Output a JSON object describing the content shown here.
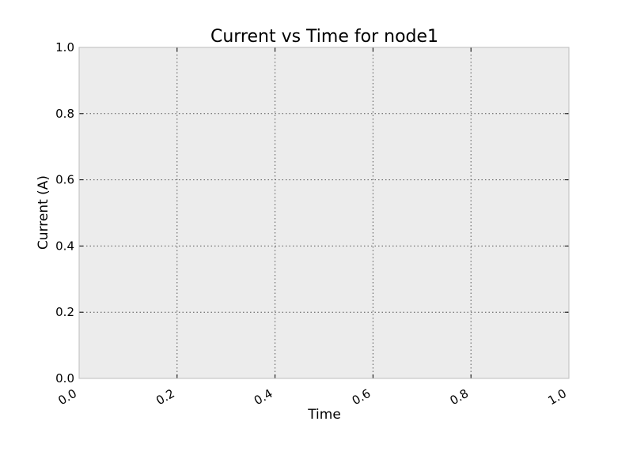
{
  "chart_data": {
    "type": "line",
    "title": "Current vs Time for node1",
    "xlabel": "Time",
    "ylabel": "Current (A)",
    "xlim": [
      0.0,
      1.0
    ],
    "ylim": [
      0.0,
      1.0
    ],
    "xticks": [
      "0.0",
      "0.2",
      "0.4",
      "0.6",
      "0.8",
      "1.0"
    ],
    "yticks": [
      "0.0",
      "0.2",
      "0.4",
      "0.6",
      "0.8",
      "1.0"
    ],
    "grid": true,
    "series": [],
    "colors": {
      "plot_background": "#ececec",
      "frame": "#bdbdbd",
      "grid": "#555555"
    }
  }
}
